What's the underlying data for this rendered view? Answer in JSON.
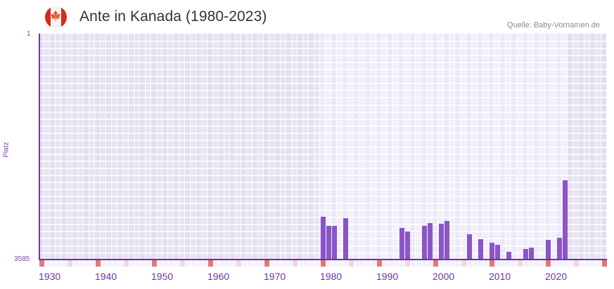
{
  "header": {
    "title": "Ante in Kanada (1980-2023)",
    "source": "Quelle: Baby-Vornamen.de",
    "flag_icon": "canada-flag-icon",
    "flag_glyph": "🍁"
  },
  "colors": {
    "bar": "#8b55c7",
    "axis": "#6a35a0",
    "decade_marker": "#e8737a",
    "half_decade_marker": "#f5d5de",
    "bg_out_of_range_a": "#e3dfee",
    "bg_out_of_range_b": "#e8e4f0",
    "bg_in_range_a": "#ece8f8",
    "bg_in_range_b": "#f2effb"
  },
  "chart_data": {
    "type": "bar",
    "title": "Ante in Kanada (1980-2023)",
    "xlabel": "",
    "ylabel": "Platz",
    "y_inverted": true,
    "ylim": [
      1,
      3585
    ],
    "y_tick_labels": [
      "1",
      "3585"
    ],
    "x_range": [
      1930,
      2030
    ],
    "x_tick_labels": [
      "1930",
      "1940",
      "1950",
      "1960",
      "1970",
      "1980",
      "1990",
      "2000",
      "2010",
      "2020"
    ],
    "highlight_range": [
      1980,
      2023
    ],
    "grid": true,
    "legend": null,
    "categories": [
      1980,
      1981,
      1982,
      1984,
      1994,
      1995,
      1998,
      1999,
      2001,
      2002,
      2006,
      2008,
      2010,
      2011,
      2013,
      2016,
      2017,
      2020,
      2022,
      2023
    ],
    "values": [
      2906,
      3050,
      3050,
      2928,
      3084,
      3140,
      3050,
      3006,
      3017,
      2973,
      3184,
      3262,
      3318,
      3351,
      3463,
      3418,
      3396,
      3273,
      3240,
      2327
    ],
    "annotations": [
      {
        "text": "Quelle: Baby-Vornamen.de",
        "position": "top-right"
      }
    ]
  },
  "axis": {
    "y_top_label": "1",
    "y_bottom_label": "3585",
    "y_title": "Platz"
  }
}
